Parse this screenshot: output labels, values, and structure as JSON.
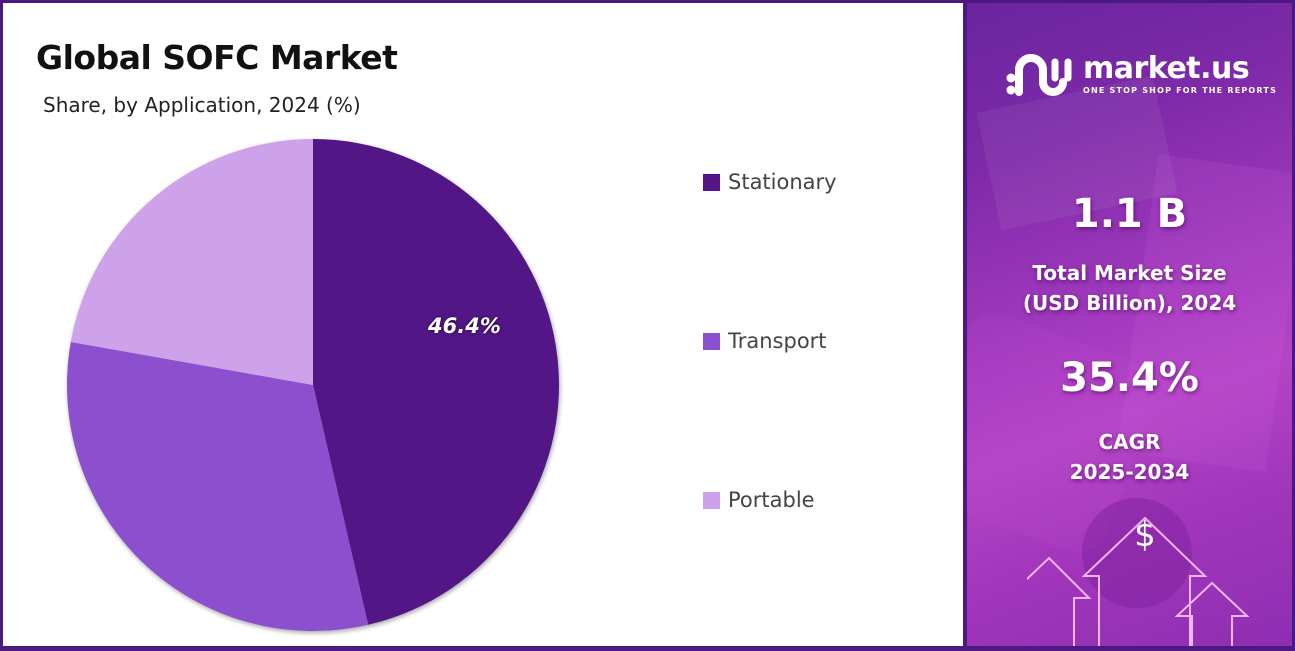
{
  "header": {
    "title": "Global SOFC Market",
    "subtitle": "Share, by Application, 2024 (%)"
  },
  "chart_data": {
    "type": "pie",
    "title": "Global SOFC Market",
    "subtitle": "Share, by Application, 2024 (%)",
    "categories": [
      "Stationary",
      "Transport",
      "Portable"
    ],
    "values": [
      46.4,
      31.4,
      22.2
    ],
    "colors": [
      "#521686",
      "#8c4fcd",
      "#cea2ea"
    ],
    "data_labels": [
      {
        "category": "Stationary",
        "text": "46.4%"
      }
    ],
    "start_angle_deg": 0,
    "direction": "clockwise",
    "legend_position": "right"
  },
  "pie": {
    "label": "46.4%"
  },
  "legend": {
    "items": [
      {
        "label": "Stationary",
        "color": "#521686"
      },
      {
        "label": "Transport",
        "color": "#8c4fcd"
      },
      {
        "label": "Portable",
        "color": "#cea2ea"
      }
    ]
  },
  "brand": {
    "name": "market.us",
    "tagline": "ONE STOP SHOP FOR THE REPORTS"
  },
  "stats": {
    "market_size_value": "1.1 B",
    "market_size_label_line1": "Total Market Size",
    "market_size_label_line2": "(USD Billion), 2024",
    "cagr_value": "35.4%",
    "cagr_label_line1": "CAGR",
    "cagr_label_line2": "2025-2034"
  },
  "decoration": {
    "currency_symbol": "$"
  },
  "colors": {
    "frame": "#4a1a82",
    "panel_gradient_start": "#6a249e",
    "panel_gradient_mid": "#b444c6"
  }
}
